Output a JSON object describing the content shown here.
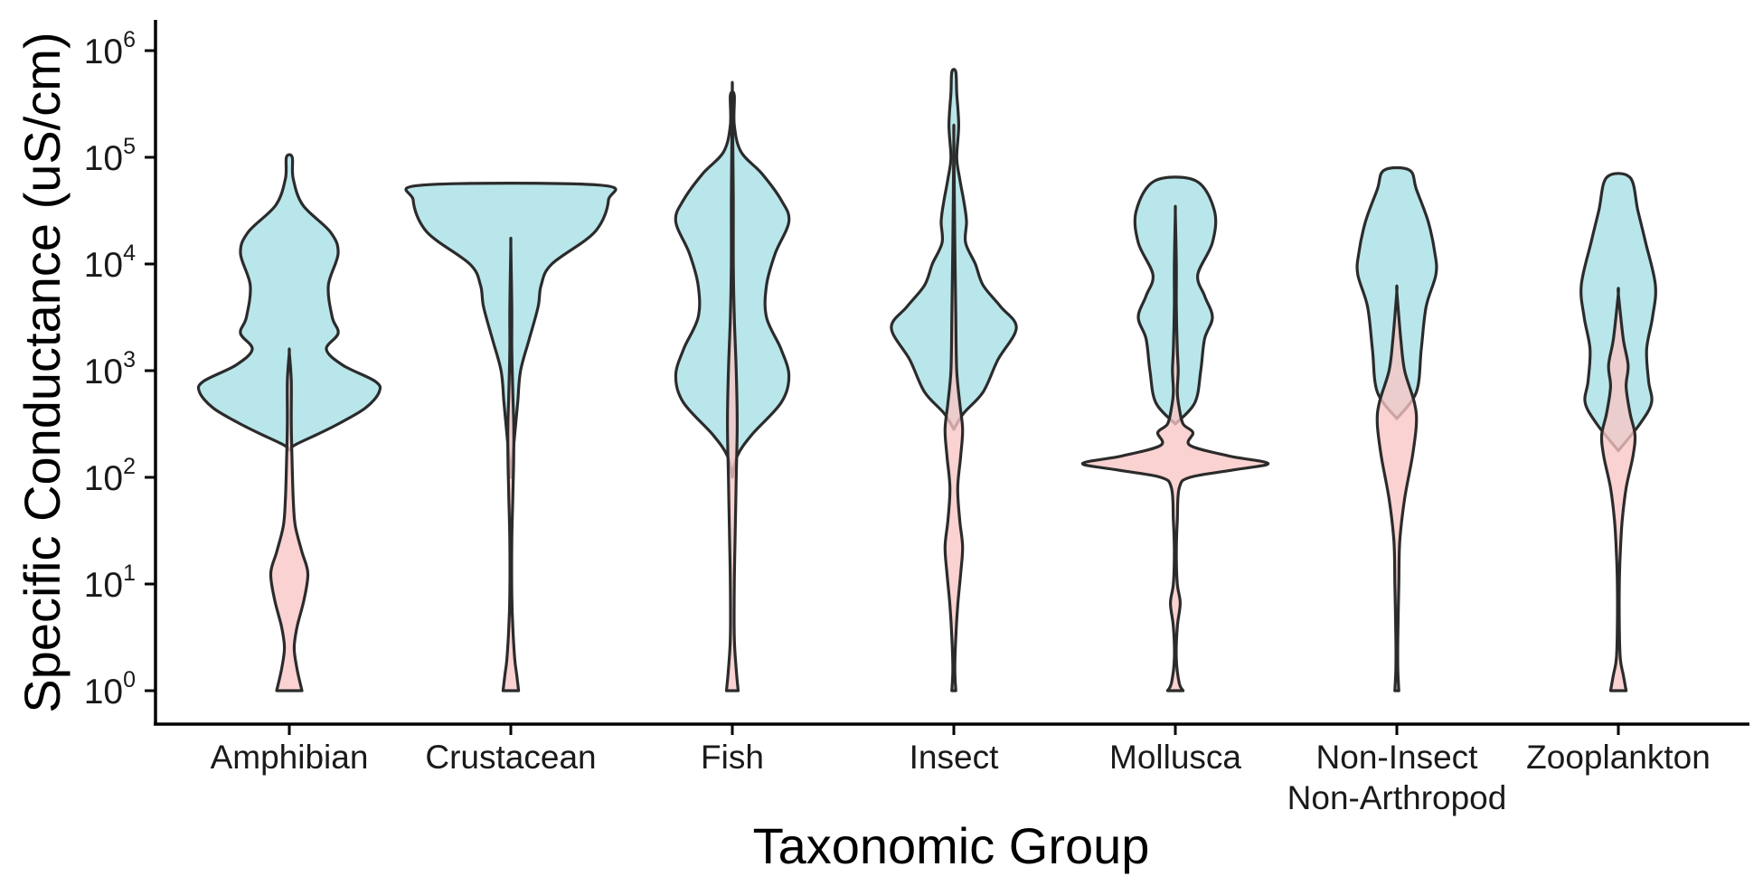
{
  "chart_data": {
    "type": "violin",
    "xlabel": "Taxonomic Group",
    "ylabel": "Specific Conductance (uS/cm)",
    "y_scale": "log10",
    "ylim": [
      1,
      1000000
    ],
    "y_ticks": [
      {
        "base": "10",
        "exp": "0"
      },
      {
        "base": "10",
        "exp": "1"
      },
      {
        "base": "10",
        "exp": "2"
      },
      {
        "base": "10",
        "exp": "3"
      },
      {
        "base": "10",
        "exp": "4"
      },
      {
        "base": "10",
        "exp": "5"
      },
      {
        "base": "10",
        "exp": "6"
      }
    ],
    "categories": [
      {
        "line1": "Amphibian",
        "line2": ""
      },
      {
        "line1": "Crustacean",
        "line2": ""
      },
      {
        "line1": "Fish",
        "line2": ""
      },
      {
        "line1": "Insect",
        "line2": ""
      },
      {
        "line1": "Mollusca",
        "line2": ""
      },
      {
        "line1": "Non-Insect",
        "line2": "Non-Arthropod"
      },
      {
        "line1": "Zooplankton",
        "line2": ""
      }
    ],
    "grid": false,
    "legend": "none",
    "series_colors": [
      "#b9e6ea",
      "#f8c5c4"
    ],
    "outline_color": "#2b2b2b",
    "series": [
      {
        "color": "#b9e6ea",
        "violins": [
          {
            "min": 180,
            "max": 100000,
            "profile": [
              [
                2.255,
                0
              ],
              [
                2.3,
                0.05
              ],
              [
                2.4,
                0.28
              ],
              [
                2.5,
                0.5
              ],
              [
                2.65,
                0.78
              ],
              [
                2.8,
                0.92
              ],
              [
                2.9,
                0.88
              ],
              [
                3.05,
                0.55
              ],
              [
                3.2,
                0.38
              ],
              [
                3.35,
                0.5
              ],
              [
                3.5,
                0.44
              ],
              [
                3.8,
                0.4
              ],
              [
                4.1,
                0.5
              ],
              [
                4.3,
                0.42
              ],
              [
                4.55,
                0.14
              ],
              [
                4.8,
                0.04
              ],
              [
                5.0,
                0.03
              ]
            ]
          },
          {
            "min": 100,
            "max": 55000,
            "profile": [
              [
                2.0,
                0
              ],
              [
                2.3,
                0.03
              ],
              [
                2.7,
                0.07
              ],
              [
                3.0,
                0.1
              ],
              [
                3.3,
                0.19
              ],
              [
                3.6,
                0.28
              ],
              [
                3.8,
                0.31
              ],
              [
                4.0,
                0.42
              ],
              [
                4.3,
                0.86
              ],
              [
                4.6,
                1.0
              ],
              [
                4.74,
                0.9
              ]
            ]
          },
          {
            "min": 100,
            "max": 380000,
            "profile": [
              [
                2.0,
                0
              ],
              [
                2.2,
                0.05
              ],
              [
                2.4,
                0.2
              ],
              [
                2.7,
                0.5
              ],
              [
                2.95,
                0.58
              ],
              [
                3.2,
                0.5
              ],
              [
                3.5,
                0.35
              ],
              [
                3.8,
                0.35
              ],
              [
                4.1,
                0.44
              ],
              [
                4.4,
                0.58
              ],
              [
                4.6,
                0.5
              ],
              [
                4.85,
                0.3
              ],
              [
                5.05,
                0.09
              ],
              [
                5.3,
                0.02
              ],
              [
                5.58,
                0.02
              ]
            ]
          },
          {
            "min": 280,
            "max": 650000,
            "profile": [
              [
                2.45,
                0
              ],
              [
                2.6,
                0.1
              ],
              [
                2.8,
                0.3
              ],
              [
                3.1,
                0.45
              ],
              [
                3.4,
                0.64
              ],
              [
                3.6,
                0.48
              ],
              [
                3.8,
                0.3
              ],
              [
                4.0,
                0.22
              ],
              [
                4.2,
                0.12
              ],
              [
                4.4,
                0.13
              ],
              [
                4.6,
                0.1
              ],
              [
                4.8,
                0.06
              ],
              [
                5.0,
                0.03
              ],
              [
                5.3,
                0.05
              ],
              [
                5.6,
                0.03
              ],
              [
                5.8,
                0.02
              ]
            ]
          },
          {
            "min": 300,
            "max": 60000,
            "profile": [
              [
                2.5,
                0
              ],
              [
                2.7,
                0.2
              ],
              [
                3.0,
                0.26
              ],
              [
                3.3,
                0.3
              ],
              [
                3.5,
                0.38
              ],
              [
                3.7,
                0.3
              ],
              [
                3.9,
                0.23
              ],
              [
                4.2,
                0.38
              ],
              [
                4.5,
                0.4
              ],
              [
                4.78,
                0.21
              ]
            ]
          },
          {
            "min": 350,
            "max": 75000,
            "profile": [
              [
                2.55,
                0
              ],
              [
                2.8,
                0.2
              ],
              [
                3.2,
                0.25
              ],
              [
                3.6,
                0.3
              ],
              [
                3.9,
                0.4
              ],
              [
                4.1,
                0.39
              ],
              [
                4.4,
                0.32
              ],
              [
                4.7,
                0.2
              ],
              [
                4.88,
                0.13
              ]
            ]
          },
          {
            "min": 180,
            "max": 65000,
            "profile": [
              [
                2.25,
                0
              ],
              [
                2.5,
                0.22
              ],
              [
                2.7,
                0.34
              ],
              [
                2.9,
                0.31
              ],
              [
                3.2,
                0.29
              ],
              [
                3.5,
                0.35
              ],
              [
                3.8,
                0.38
              ],
              [
                4.2,
                0.28
              ],
              [
                4.5,
                0.2
              ],
              [
                4.81,
                0.12
              ]
            ]
          }
        ]
      },
      {
        "color": "#f8c5c4",
        "violins": [
          {
            "min": 1,
            "max": 1500,
            "profile": [
              [
                0,
                0.13
              ],
              [
                0.2,
                0.08
              ],
              [
                0.4,
                0.05
              ],
              [
                0.6,
                0.08
              ],
              [
                0.85,
                0.15
              ],
              [
                1.1,
                0.19
              ],
              [
                1.3,
                0.13
              ],
              [
                1.55,
                0.06
              ],
              [
                1.8,
                0.04
              ],
              [
                2.1,
                0.03
              ],
              [
                2.5,
                0.02
              ],
              [
                2.9,
                0.02
              ],
              [
                3.17,
                0
              ]
            ]
          },
          {
            "min": 1,
            "max": 15000,
            "profile": [
              [
                0,
                0.08
              ],
              [
                0.15,
                0.06
              ],
              [
                0.3,
                0.04
              ],
              [
                0.6,
                0.02
              ],
              [
                0.9,
                0.01
              ],
              [
                1.4,
                0.01
              ],
              [
                1.8,
                0.02
              ],
              [
                2.2,
                0.03
              ],
              [
                2.5,
                0.03
              ],
              [
                2.8,
                0.02
              ],
              [
                3.2,
                0.01
              ],
              [
                3.6,
                0.01
              ],
              [
                4.17,
                0
              ]
            ]
          },
          {
            "min": 1,
            "max": 380000,
            "profile": [
              [
                0,
                0.06
              ],
              [
                0.2,
                0.04
              ],
              [
                0.5,
                0.02
              ],
              [
                1.0,
                0.02
              ],
              [
                1.5,
                0.03
              ],
              [
                2.0,
                0.04
              ],
              [
                2.5,
                0.05
              ],
              [
                3.0,
                0.04
              ],
              [
                3.5,
                0.02
              ],
              [
                4.0,
                0.01
              ],
              [
                4.6,
                0.01
              ],
              [
                5.58,
                0
              ]
            ]
          },
          {
            "min": 1,
            "max": 150000,
            "profile": [
              [
                0,
                0.02
              ],
              [
                0.2,
                0.01
              ],
              [
                0.5,
                0.02
              ],
              [
                0.8,
                0.04
              ],
              [
                1.1,
                0.07
              ],
              [
                1.35,
                0.09
              ],
              [
                1.6,
                0.06
              ],
              [
                1.9,
                0.04
              ],
              [
                2.2,
                0.07
              ],
              [
                2.45,
                0.09
              ],
              [
                2.7,
                0.06
              ],
              [
                3.0,
                0.03
              ],
              [
                3.5,
                0.02
              ],
              [
                4.2,
                0.01
              ],
              [
                5.18,
                0
              ]
            ]
          },
          {
            "min": 1,
            "max": 30000,
            "profile": [
              [
                0,
                0.08
              ],
              [
                0.07,
                0.04
              ],
              [
                0.3,
                0.01
              ],
              [
                0.6,
                0.02
              ],
              [
                0.82,
                0.05
              ],
              [
                1.0,
                0.02
              ],
              [
                1.3,
                0.01
              ],
              [
                1.6,
                0.02
              ],
              [
                1.9,
                0.04
              ],
              [
                2.0,
                0.15
              ],
              [
                2.07,
                0.6
              ],
              [
                2.13,
                0.95
              ],
              [
                2.2,
                0.55
              ],
              [
                2.3,
                0.15
              ],
              [
                2.42,
                0.18
              ],
              [
                2.5,
                0.08
              ],
              [
                2.65,
                0.04
              ],
              [
                2.8,
                0.02
              ],
              [
                3.0,
                0.03
              ],
              [
                3.2,
                0.02
              ],
              [
                3.6,
                0.01
              ],
              [
                4.0,
                0.01
              ],
              [
                4.48,
                0
              ]
            ]
          },
          {
            "min": 1,
            "max": 5500,
            "profile": [
              [
                0,
                0.02
              ],
              [
                0.2,
                0.01
              ],
              [
                0.5,
                0.01
              ],
              [
                1.0,
                0.02
              ],
              [
                1.4,
                0.03
              ],
              [
                1.8,
                0.08
              ],
              [
                2.2,
                0.16
              ],
              [
                2.5,
                0.2
              ],
              [
                2.7,
                0.18
              ],
              [
                3.0,
                0.08
              ],
              [
                3.3,
                0.04
              ],
              [
                3.74,
                0
              ]
            ]
          },
          {
            "min": 1,
            "max": 5200,
            "profile": [
              [
                0,
                0.08
              ],
              [
                0.15,
                0.05
              ],
              [
                0.3,
                0.02
              ],
              [
                0.6,
                0.01
              ],
              [
                1.0,
                0.01
              ],
              [
                1.3,
                0.02
              ],
              [
                1.6,
                0.04
              ],
              [
                1.9,
                0.08
              ],
              [
                2.2,
                0.15
              ],
              [
                2.4,
                0.17
              ],
              [
                2.6,
                0.12
              ],
              [
                2.85,
                0.08
              ],
              [
                3.05,
                0.1
              ],
              [
                3.3,
                0.05
              ],
              [
                3.72,
                0
              ]
            ]
          }
        ]
      }
    ]
  }
}
